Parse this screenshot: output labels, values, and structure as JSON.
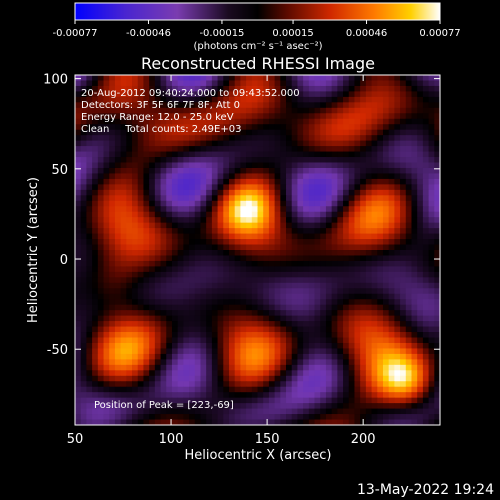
{
  "colorbar": {
    "ticks": [
      "-0.00077",
      "-0.00046",
      "-0.00015",
      "0.00015",
      "0.00046",
      "0.00077"
    ],
    "values": [
      -0.00077,
      -0.00046,
      -0.00015,
      0.00015,
      0.00046,
      0.00077
    ],
    "label": "(photons cm⁻² s⁻¹ asec⁻²)",
    "range": [
      -0.00077,
      0.00077
    ],
    "colors": [
      "#0000ff",
      "#5b2bbf",
      "#000000",
      "#8a1200",
      "#e03000",
      "#ff8a00",
      "#ffd200",
      "#ffffff"
    ]
  },
  "chart_data": {
    "type": "heatmap",
    "title": "Reconstructed RHESSI Image",
    "xlabel": "Heliocentric X (arcsec)",
    "ylabel": "Heliocentric Y (arcsec)",
    "xlim": [
      50,
      240
    ],
    "ylim": [
      -92,
      102
    ],
    "xticks": [
      50,
      100,
      150,
      200
    ],
    "yticks": [
      -50,
      0,
      50,
      100
    ],
    "annotations": [
      "20-Aug-2012 09:40:24.000 to 09:43:52.000",
      "Detectors: 3F 5F 6F 7F 8F, Att 0",
      "Energy Range: 12.0 - 25.0 keV",
      "Clean     Total counts: 2.49E+03"
    ],
    "peak_label": "Position of Peak = [223,-69]",
    "peak": [
      223,
      -69
    ],
    "grid": false
  },
  "timestamp": "13-May-2022 19:24"
}
